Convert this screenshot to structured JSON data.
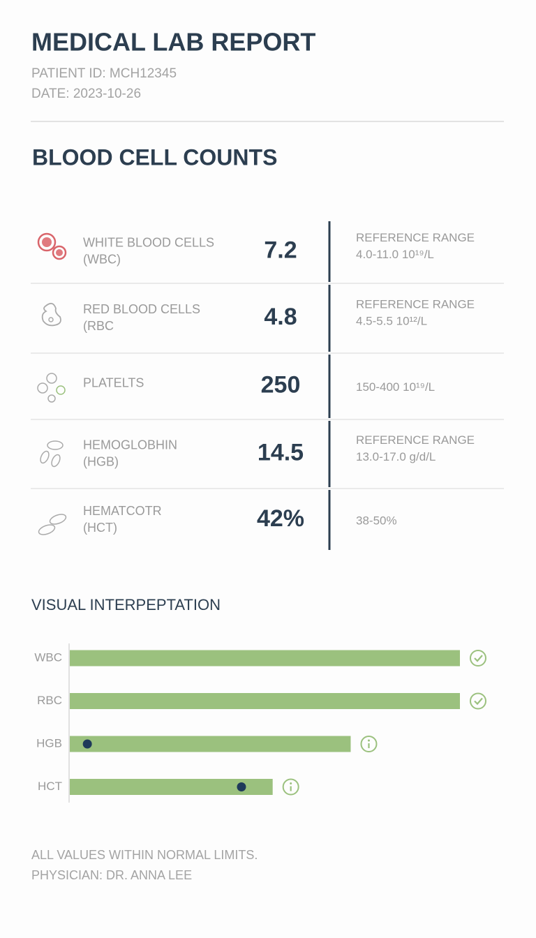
{
  "header": {
    "title": "MEDICAL LAB REPORT",
    "patient_id": "PATIENT ID: MCH12345",
    "date": "DATE: 2023-10-26"
  },
  "section_title": "BLOOD CELL COUNTS",
  "table": {
    "rows": [
      {
        "name": "WHITE BLOOD CELLS",
        "abbr": "(WBC)",
        "value": "7.2",
        "ref_label": "REFERENCE RANGE",
        "ref_range": "4.0-11.0 10¹⁹/L"
      },
      {
        "name": "RED BLOOD CELLS",
        "abbr": "(RBC",
        "value": "4.8",
        "ref_label": "REFERENCE RANGE",
        "ref_range": "4.5-5.5 10¹²/L"
      },
      {
        "name": "PLATELTS",
        "value": "250",
        "ref_range": "150-400 10¹⁹/L"
      },
      {
        "name": "HEMOGLOBHIN",
        "abbr": "(HGB)",
        "value": "14.5",
        "ref_label": "REFERENCE RANGE",
        "ref_range": "13.0-17.0 g/d/L"
      },
      {
        "name": "HEMATCOTR",
        "abbr": "(HCT)",
        "value": "42%",
        "ref_range": "38-50%"
      }
    ]
  },
  "chart_data": {
    "type": "bar",
    "orientation": "horizontal",
    "title": "VISUAL INTERPEPTATION",
    "categories": [
      "WBC",
      "RBC",
      "HGB",
      "HCT"
    ],
    "values": [
      100,
      100,
      72,
      52
    ],
    "markers": [
      null,
      null,
      4.5,
      44
    ],
    "status": [
      "check",
      "check",
      "info",
      "info"
    ],
    "color": "#9bc17e",
    "marker_color": "#1f3a5a",
    "xlim": [
      0,
      100
    ]
  },
  "footer": {
    "note": "ALL VALUES WITHIN NORMAL LIMITS.",
    "physician": "PHYSICIAN: DR. ANNA LEE"
  }
}
